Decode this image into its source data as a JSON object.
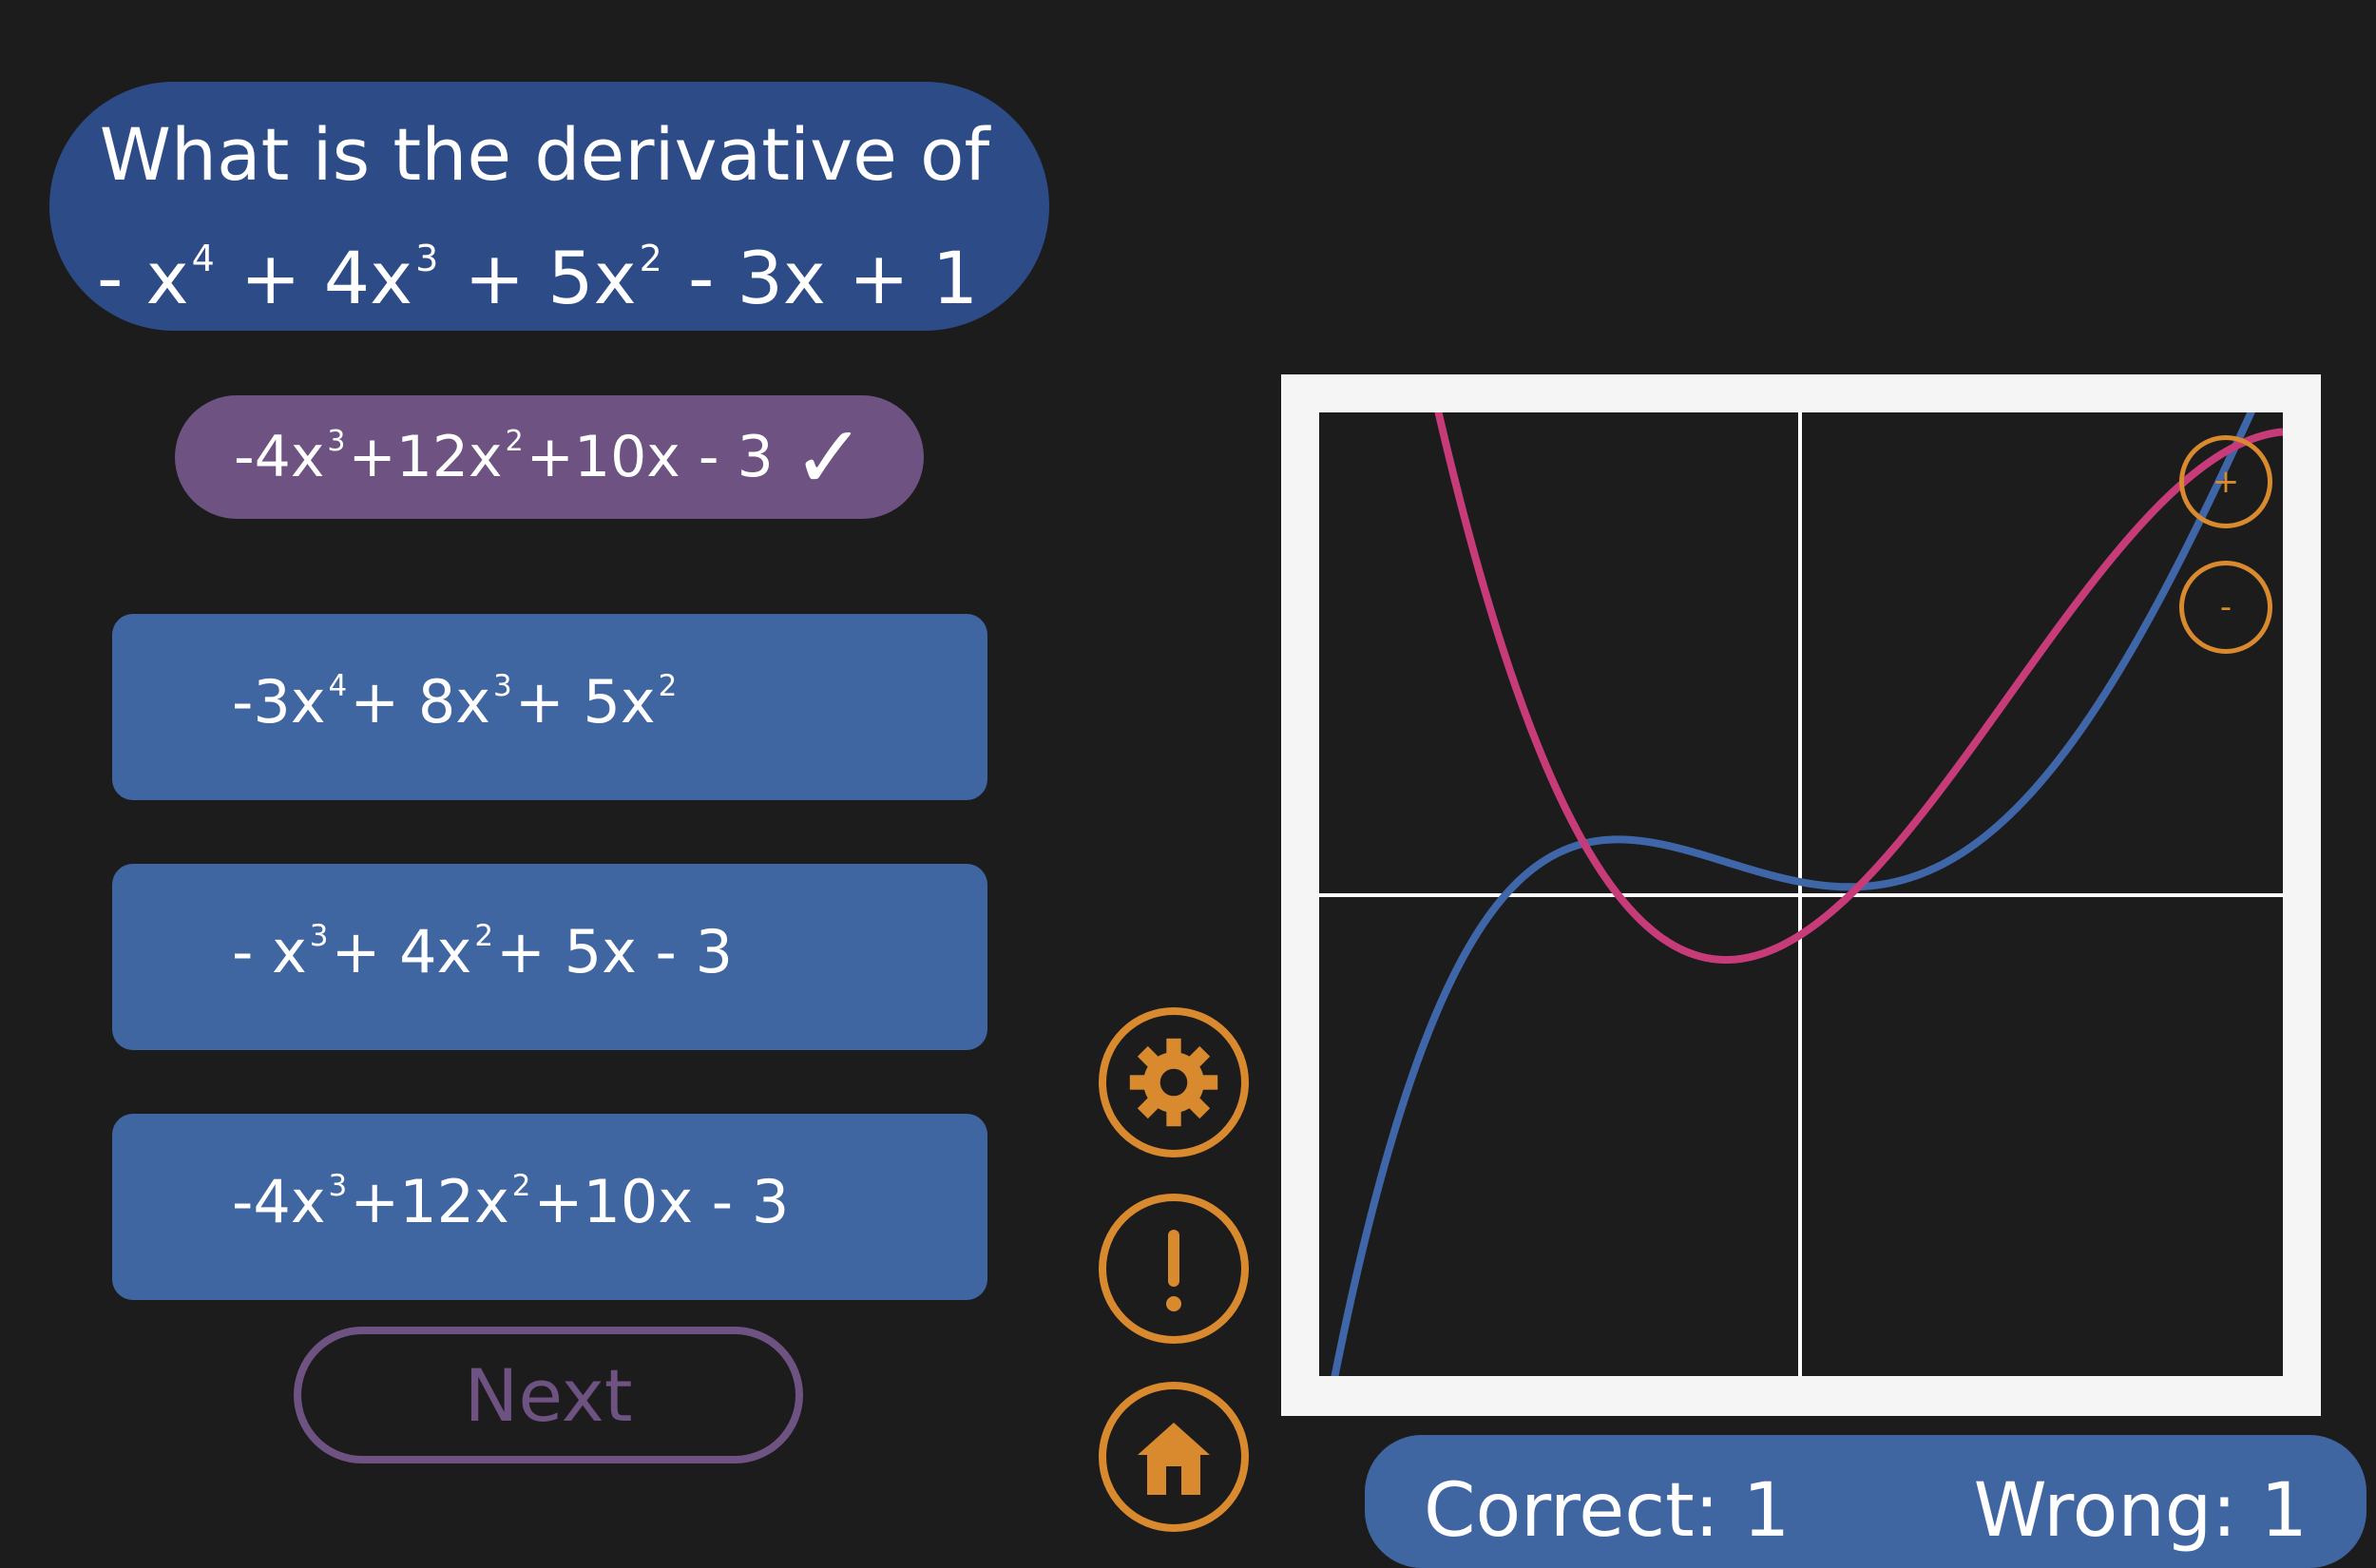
{
  "question": {
    "line1": "What is the derivative of",
    "poly": [
      {
        "t": "- x",
        "s": "4"
      },
      {
        "t": "+ 4x",
        "s": "3"
      },
      {
        "t": "+ 5x",
        "s": "2"
      },
      {
        "t": "- 3x  +  1",
        "s": ""
      }
    ]
  },
  "selected": {
    "terms": [
      {
        "t": "-4x",
        "s": "3"
      },
      {
        "t": "+12x",
        "s": "2"
      },
      {
        "t": "+10x  -  3",
        "s": ""
      }
    ],
    "mark": "✓"
  },
  "answers": [
    {
      "terms": [
        {
          "t": "-3x",
          "s": "4"
        },
        {
          "t": "+ 8x",
          "s": "3"
        },
        {
          "t": "+ 5x",
          "s": "2"
        }
      ]
    },
    {
      "terms": [
        {
          "t": "- x",
          "s": "3"
        },
        {
          "t": "+ 4x",
          "s": "2"
        },
        {
          "t": "+ 5x  -  3",
          "s": ""
        }
      ]
    },
    {
      "terms": [
        {
          "t": "-4x",
          "s": "3"
        },
        {
          "t": "+12x",
          "s": "2"
        },
        {
          "t": "+10x  -  3",
          "s": ""
        }
      ]
    }
  ],
  "next_label": "Next",
  "icons": {
    "settings": "gear-icon",
    "info": "exclamation-icon",
    "home": "home-icon",
    "zoom_in": "plus-icon",
    "zoom_out": "minus-icon"
  },
  "zoom": {
    "in_label": "+",
    "out_label": "-"
  },
  "score": {
    "correct": "Correct: 1",
    "wrong": "Wrong: 1"
  },
  "colors": {
    "background": "#1c1c1c",
    "question_bg": "#2d4b86",
    "answer_bg": "#4066a2",
    "selected_bg": "#6e5282",
    "accent_orange": "#d98a2e",
    "curve_function": "#3e66a8",
    "curve_derivative": "#c73c78"
  }
}
